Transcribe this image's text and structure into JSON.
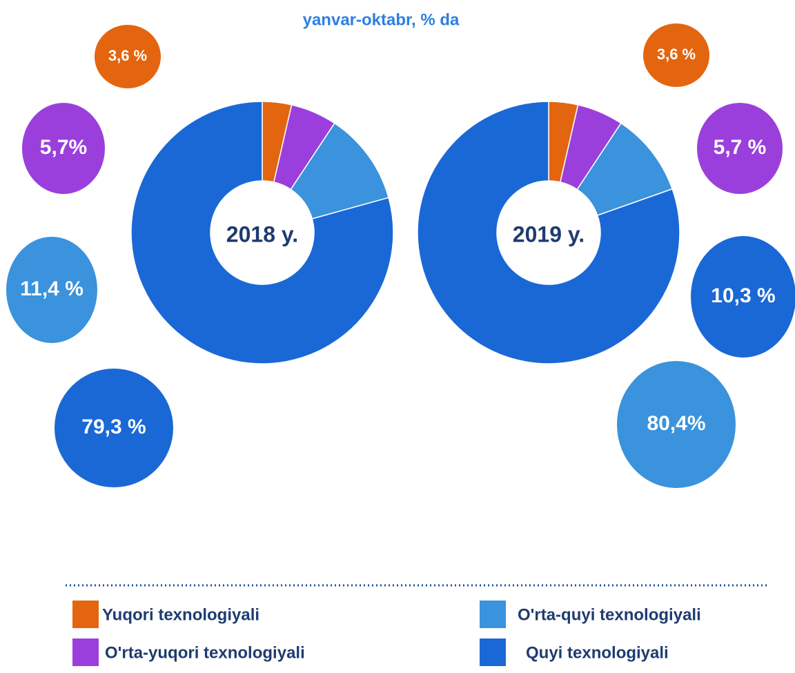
{
  "title": "yanvar-oktabr,  % da",
  "legend": {
    "categories": [
      "Yuqori texnologiyali",
      "O'rta-yuqori texnologiyali",
      "O'rta-quyi texnologiyali",
      "Quyi texnologiyali"
    ],
    "colors": [
      "#e3650f",
      "#9b3fdc",
      "#3a93dc",
      "#1a68d6"
    ]
  },
  "chart_data": [
    {
      "type": "donut",
      "label": "2018 y.",
      "values": [
        3.6,
        5.7,
        11.4,
        79.3
      ],
      "value_labels": [
        "3,6 %",
        "5,7%",
        "11,4 %",
        "79,3 %"
      ],
      "bubble_colors": [
        "#e3650f",
        "#9b3fdc",
        "#3a93dc",
        "#1a68d6"
      ]
    },
    {
      "type": "donut",
      "label": "2019 y.",
      "values": [
        3.6,
        5.7,
        10.3,
        80.4
      ],
      "value_labels": [
        "3,6 %",
        "5,7 %",
        "10,3 %",
        "80,4%"
      ],
      "bubble_colors": [
        "#e3650f",
        "#9b3fdc",
        "#1a68d6",
        "#3a93dc"
      ]
    }
  ]
}
